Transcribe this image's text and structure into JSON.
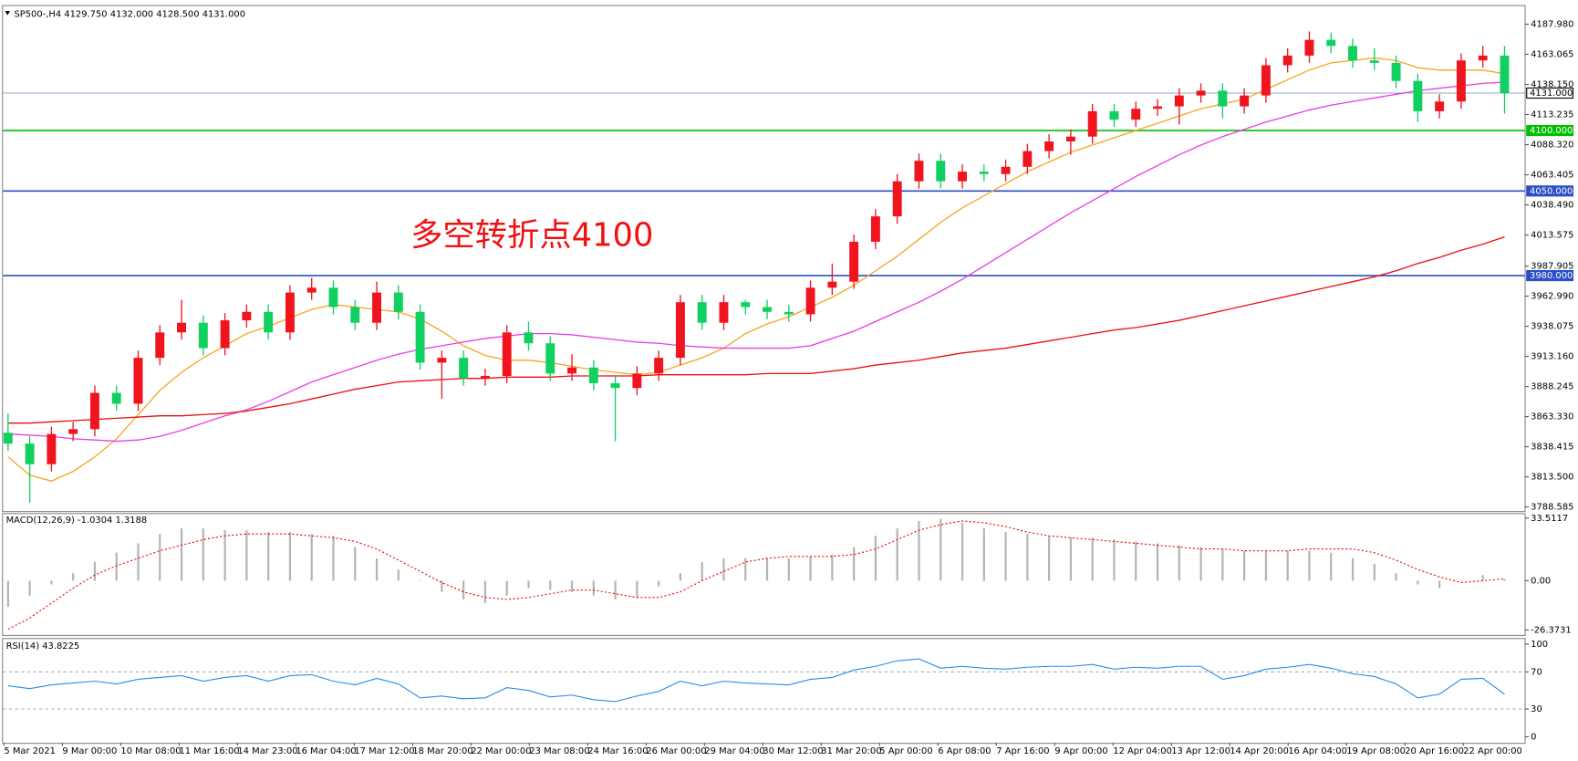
{
  "chart_data": [
    {
      "type": "candlestick",
      "title": "SP500-,H4  4129.750 4132.000 4128.500 4131.000",
      "annotation": "多空转折点4100",
      "time_labels": [
        "5 Mar 2021",
        "9 Mar 00:00",
        "10 Mar 08:00",
        "11 Mar 16:00",
        "14 Mar 23:00",
        "16 Mar 04:00",
        "17 Mar 12:00",
        "18 Mar 20:00",
        "22 Mar 00:00",
        "23 Mar 08:00",
        "24 Mar 16:00",
        "26 Mar 00:00",
        "29 Mar 04:00",
        "30 Mar 12:00",
        "31 Mar 20:00",
        "5 Apr 00:00",
        "6 Apr 08:00",
        "7 Apr 16:00",
        "9 Apr 00:00",
        "12 Apr 04:00",
        "13 Apr 12:00",
        "14 Apr 20:00",
        "16 Apr 04:00",
        "19 Apr 08:00",
        "20 Apr 16:00",
        "22 Apr 00:00"
      ],
      "open": [
        3850,
        3841,
        3824,
        3849,
        3853,
        3883,
        3874,
        3912,
        3933,
        3941,
        3920,
        3943,
        3950,
        3933,
        3966,
        3970,
        3954,
        3941,
        3966,
        3950,
        3908,
        3912,
        3895,
        3897,
        3933,
        3924,
        3899,
        3904,
        3891,
        3887,
        3899,
        3912,
        3958,
        3941,
        3958,
        3954,
        3950,
        3948,
        3970,
        3975,
        4008,
        4029,
        4058,
        4075,
        4058,
        4066,
        4064,
        4070,
        4083,
        4091,
        4095,
        4116,
        4109,
        4118,
        4120,
        4129,
        4133,
        4120,
        4129,
        4154,
        4162,
        4175,
        4170,
        4158,
        4156,
        4141,
        4116,
        4124,
        4158,
        4162
      ],
      "high": [
        3866,
        3847,
        3855,
        3859,
        3889,
        3889,
        3918,
        3939,
        3960,
        3947,
        3949,
        3956,
        3956,
        3972,
        3978,
        3976,
        3960,
        3975,
        3972,
        3956,
        3918,
        3918,
        3903,
        3939,
        3942,
        3930,
        3915,
        3910,
        3897,
        3905,
        3918,
        3964,
        3964,
        3964,
        3960,
        3960,
        3956,
        3976,
        3990,
        4014,
        4035,
        4064,
        4081,
        4081,
        4072,
        4072,
        4076,
        4089,
        4097,
        4101,
        4122,
        4122,
        4124,
        4126,
        4135,
        4139,
        4139,
        4135,
        4160,
        4168,
        4182,
        4181,
        4176,
        4168,
        4162,
        4147,
        4130,
        4164,
        4170,
        4170
      ],
      "low": [
        3835,
        3792,
        3818,
        3843,
        3847,
        3868,
        3868,
        3906,
        3927,
        3914,
        3914,
        3937,
        3927,
        3927,
        3960,
        3948,
        3935,
        3935,
        3944,
        3902,
        3878,
        3889,
        3889,
        3891,
        3918,
        3893,
        3893,
        3885,
        3843,
        3881,
        3893,
        3906,
        3935,
        3935,
        3948,
        3944,
        3942,
        3942,
        3964,
        3969,
        4002,
        4023,
        4052,
        4052,
        4052,
        4058,
        4058,
        4064,
        4077,
        4080,
        4089,
        4103,
        4103,
        4112,
        4105,
        4123,
        4110,
        4114,
        4123,
        4148,
        4156,
        4164,
        4152,
        4150,
        4135,
        4107,
        4110,
        4118,
        4152,
        4114
      ],
      "close": [
        3841,
        3824,
        3849,
        3853,
        3883,
        3874,
        3912,
        3933,
        3941,
        3920,
        3943,
        3950,
        3933,
        3966,
        3970,
        3954,
        3941,
        3966,
        3950,
        3908,
        3912,
        3895,
        3897,
        3933,
        3924,
        3899,
        3904,
        3891,
        3887,
        3899,
        3912,
        3958,
        3941,
        3958,
        3954,
        3950,
        3948,
        3970,
        3975,
        4008,
        4029,
        4058,
        4075,
        4058,
        4066,
        4064,
        4070,
        4083,
        4091,
        4095,
        4116,
        4109,
        4118,
        4120,
        4129,
        4133,
        4120,
        4129,
        4154,
        4162,
        4175,
        4170,
        4158,
        4156,
        4141,
        4116,
        4124,
        4158,
        4162,
        4131
      ],
      "up_color": "#f0141e",
      "down_color": "#10d060",
      "moving_averages": [
        {
          "color": "#f5a623",
          "values": [
            3830,
            3815,
            3810,
            3818,
            3830,
            3845,
            3865,
            3885,
            3900,
            3912,
            3922,
            3932,
            3938,
            3945,
            3952,
            3956,
            3954,
            3952,
            3950,
            3944,
            3934,
            3922,
            3914,
            3910,
            3910,
            3908,
            3905,
            3902,
            3900,
            3898,
            3900,
            3906,
            3912,
            3920,
            3932,
            3940,
            3946,
            3954,
            3962,
            3972,
            3984,
            3996,
            4010,
            4024,
            4036,
            4046,
            4056,
            4066,
            4074,
            4082,
            4088,
            4094,
            4100,
            4106,
            4112,
            4118,
            4122,
            4126,
            4134,
            4142,
            4150,
            4156,
            4158,
            4160,
            4158,
            4152,
            4150,
            4150,
            4150,
            4147
          ]
        },
        {
          "color": "#e83ce8",
          "values": [
            3849,
            3848,
            3847,
            3845,
            3844,
            3843,
            3844,
            3847,
            3852,
            3858,
            3864,
            3869,
            3876,
            3884,
            3892,
            3898,
            3904,
            3910,
            3915,
            3919,
            3922,
            3925,
            3928,
            3930,
            3932,
            3932,
            3931,
            3929,
            3927,
            3925,
            3924,
            3922,
            3921,
            3920,
            3920,
            3920,
            3920,
            3922,
            3928,
            3934,
            3942,
            3950,
            3958,
            3967,
            3977,
            3988,
            3999,
            4010,
            4021,
            4032,
            4042,
            4052,
            4062,
            4071,
            4080,
            4088,
            4095,
            4101,
            4107,
            4112,
            4117,
            4121,
            4124,
            4127,
            4130,
            4133,
            4135,
            4137,
            4139,
            4140
          ]
        },
        {
          "color": "#e81010",
          "values": [
            3858,
            3858,
            3859,
            3860,
            3861,
            3862,
            3863,
            3864,
            3864,
            3865,
            3866,
            3868,
            3871,
            3874,
            3878,
            3882,
            3886,
            3889,
            3892,
            3893,
            3894,
            3895,
            3895,
            3896,
            3896,
            3896,
            3897,
            3897,
            3897,
            3897,
            3898,
            3898,
            3898,
            3898,
            3898,
            3899,
            3899,
            3899,
            3901,
            3903,
            3906,
            3908,
            3910,
            3913,
            3916,
            3918,
            3920,
            3923,
            3926,
            3929,
            3932,
            3935,
            3937,
            3940,
            3943,
            3947,
            3951,
            3955,
            3959,
            3963,
            3967,
            3971,
            3975,
            3979,
            3984,
            3990,
            3995,
            4001,
            4006,
            4012
          ]
        }
      ],
      "levels": [
        {
          "value": 4131,
          "label": "4131.000",
          "color": "#8fa8c8"
        },
        {
          "value": 4100,
          "label": "4100.000",
          "color": "#00c000"
        },
        {
          "value": 4050,
          "label": "4050.000",
          "color": "#2a4fc8"
        },
        {
          "value": 3980,
          "label": "3980.000",
          "color": "#2a4fc8"
        }
      ],
      "ylim": [
        3785.25,
        4203.82
      ],
      "yticks": [
        {
          "value": 4187.98,
          "label": "4187.980"
        },
        {
          "value": 4163.065,
          "label": "4163.065"
        },
        {
          "value": 4138.15,
          "label": "4138.150"
        },
        {
          "value": 4113.235,
          "label": "4113.235"
        },
        {
          "value": 4088.32,
          "label": "4088.320"
        },
        {
          "value": 4063.405,
          "label": "4063.405"
        },
        {
          "value": 4038.49,
          "label": "4038.490"
        },
        {
          "value": 4013.575,
          "label": "4013.575"
        },
        {
          "value": 3987.905,
          "label": "3987.905"
        },
        {
          "value": 3962.99,
          "label": "3962.990"
        },
        {
          "value": 3938.075,
          "label": "3938.075"
        },
        {
          "value": 3913.16,
          "label": "3913.160"
        },
        {
          "value": 3888.245,
          "label": "3888.245"
        },
        {
          "value": 3863.33,
          "label": "3863.330"
        },
        {
          "value": 3838.415,
          "label": "3838.415"
        },
        {
          "value": 3813.5,
          "label": "3813.500"
        },
        {
          "value": 3788.585,
          "label": "3788.585"
        }
      ]
    },
    {
      "type": "macd",
      "title": "MACD(12,26,9) -1.0304 1.3188",
      "histogram": {
        "color": "#b4b4b4",
        "values": [
          -14,
          -8,
          -2,
          4,
          10,
          15,
          20,
          25,
          28,
          28,
          27,
          27,
          26,
          26,
          25,
          24,
          18,
          12,
          6,
          0,
          -6,
          -10,
          -12,
          -8,
          -4,
          -5,
          -6,
          -8,
          -10,
          -9,
          -3,
          4,
          10,
          12,
          12,
          12,
          12,
          13,
          14,
          18,
          24,
          28,
          32,
          33,
          31,
          28,
          26,
          25,
          24,
          23,
          23,
          22,
          21,
          20,
          19,
          18,
          17,
          16,
          16,
          16,
          16,
          15,
          12,
          9,
          4,
          -2,
          -4,
          0,
          3,
          1
        ]
      },
      "signal": {
        "color": "#e81010",
        "values": [
          -26,
          -20,
          -12,
          -4,
          3,
          8,
          12,
          16,
          19,
          22,
          24,
          25,
          25,
          25,
          24,
          23,
          21,
          17,
          11,
          5,
          -1,
          -6,
          -9,
          -10,
          -9,
          -7,
          -5,
          -5,
          -7,
          -9,
          -9,
          -6,
          0,
          5,
          10,
          12,
          13,
          13,
          13,
          14,
          17,
          22,
          27,
          30,
          32,
          31,
          29,
          26,
          24,
          23,
          22,
          21,
          20,
          19,
          18,
          17,
          17,
          16,
          16,
          16,
          17,
          17,
          17,
          15,
          11,
          6,
          2,
          -1,
          0,
          1
        ]
      },
      "ylim": [
        -29.07,
        36.21
      ],
      "yticks": [
        33.5117,
        {
          "value": 0,
          "label": "0.00"
        },
        -26.3731
      ]
    },
    {
      "type": "line",
      "title": "RSI(14) 43.8225",
      "color": "#2a8ae8",
      "values": [
        55,
        52,
        56,
        58,
        60,
        57,
        62,
        64,
        66,
        60,
        64,
        66,
        60,
        66,
        67,
        60,
        56,
        63,
        57,
        42,
        44,
        41,
        42,
        53,
        50,
        43,
        45,
        40,
        38,
        44,
        49,
        60,
        55,
        60,
        58,
        57,
        56,
        62,
        64,
        72,
        76,
        82,
        84,
        74,
        76,
        74,
        73,
        75,
        76,
        76,
        78,
        73,
        75,
        74,
        76,
        76,
        62,
        66,
        73,
        75,
        78,
        74,
        68,
        65,
        57,
        42,
        46,
        62,
        63,
        46
      ],
      "dashed_levels": [
        70,
        30
      ],
      "ylim": [
        -6.5,
        106.5
      ],
      "yticks": [
        100,
        70,
        30,
        0
      ]
    }
  ]
}
